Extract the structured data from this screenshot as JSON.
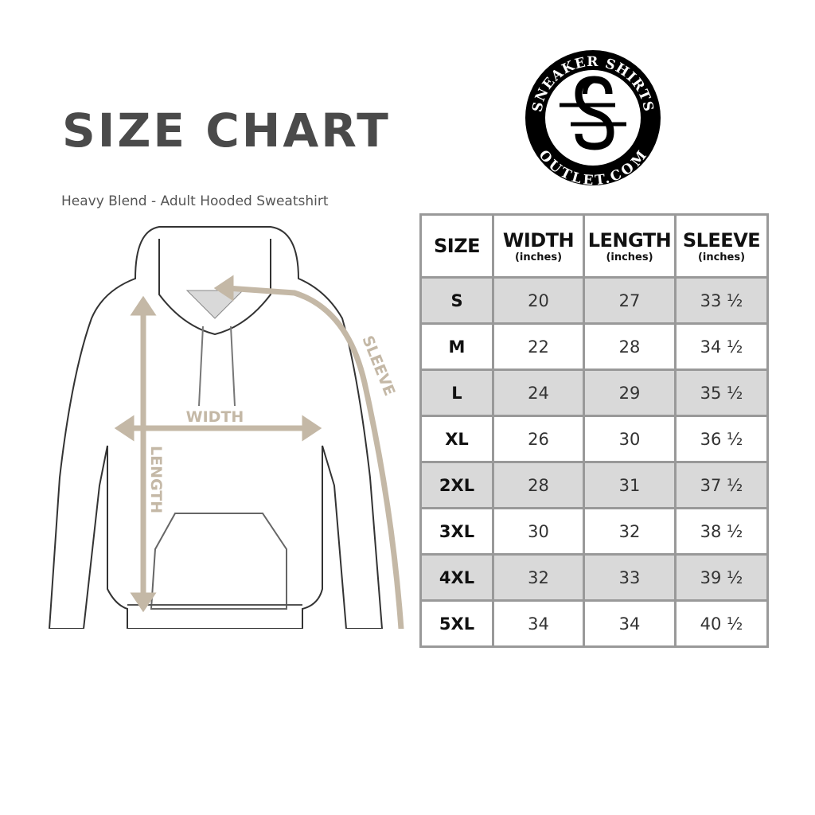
{
  "title": "SIZE CHART",
  "subtitle": "Heavy Blend - Adult Hooded Sweatshirt",
  "logo": {
    "top_text": "SNEAKER SHIRTS",
    "bottom_text": "OUTLET.COM"
  },
  "diagram": {
    "width_label": "WIDTH",
    "length_label": "LENGTH",
    "sleeve_label": "SLEEVE",
    "measure_color": "#c4b8a6"
  },
  "table": {
    "headers": [
      {
        "label": "SIZE",
        "unit": ""
      },
      {
        "label": "WIDTH",
        "unit": "(inches)"
      },
      {
        "label": "LENGTH",
        "unit": "(inches)"
      },
      {
        "label": "SLEEVE",
        "unit": "(inches)"
      }
    ],
    "rows": [
      [
        "S",
        "20",
        "27",
        "33 ½"
      ],
      [
        "M",
        "22",
        "28",
        "34 ½"
      ],
      [
        "L",
        "24",
        "29",
        "35 ½"
      ],
      [
        "XL",
        "26",
        "30",
        "36 ½"
      ],
      [
        "2XL",
        "28",
        "31",
        "37 ½"
      ],
      [
        "3XL",
        "30",
        "32",
        "38 ½"
      ],
      [
        "4XL",
        "32",
        "33",
        "39 ½"
      ],
      [
        "5XL",
        "34",
        "34",
        "40 ½"
      ]
    ],
    "shade_color": "#d9d9d9"
  }
}
